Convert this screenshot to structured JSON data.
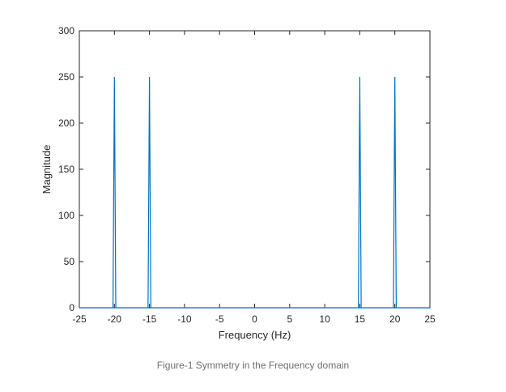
{
  "caption": "Figure-1 Symmetry in the Frequency domain",
  "chart_data": {
    "type": "line",
    "title": "",
    "xlabel": "Frequency (Hz)",
    "ylabel": "Magnitude",
    "xlim": [
      -25,
      25
    ],
    "ylim": [
      0,
      300
    ],
    "xticks": [
      -25,
      -20,
      -15,
      -10,
      -5,
      0,
      5,
      10,
      15,
      20,
      25
    ],
    "yticks": [
      0,
      50,
      100,
      150,
      200,
      250,
      300
    ],
    "grid": false,
    "line_color": "#0072bd",
    "series": [
      {
        "x": [
          -25,
          -20.2,
          -20,
          -19.8,
          -15.2,
          -15,
          -14.8,
          14.8,
          15,
          15.2,
          19.8,
          20,
          20.2,
          25
        ],
        "y": [
          0,
          0,
          250,
          0,
          0,
          250,
          0,
          0,
          250,
          0,
          0,
          250,
          0,
          0
        ]
      }
    ]
  }
}
